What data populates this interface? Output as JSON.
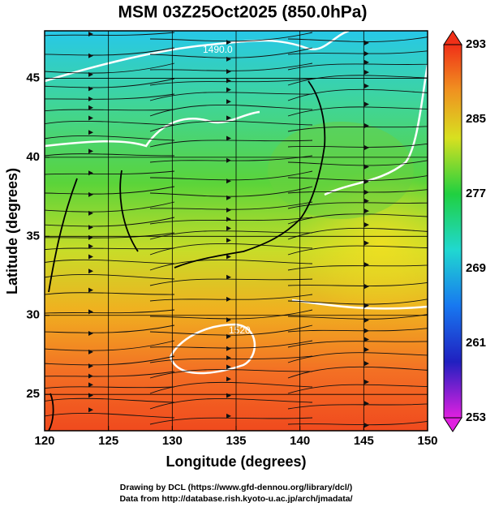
{
  "map": {
    "title": "MSM 03Z25Oct2025 (850.0hPa)",
    "xlabel": "Longitude (degrees)",
    "ylabel": "Latitude  (degrees)",
    "xlim": [
      120,
      150
    ],
    "ylim": [
      22.7,
      48
    ],
    "xticks": [
      120,
      125,
      130,
      135,
      140,
      145,
      150
    ],
    "yticks": [
      25,
      30,
      35,
      40,
      45
    ],
    "colorbar": {
      "lim": [
        253,
        293
      ],
      "ticks": [
        253,
        261,
        269,
        277,
        285,
        293
      ]
    },
    "contour_labels": [
      "1490.0",
      "1520"
    ],
    "footer": [
      "Drawing by DCL (https://www.gfd-dennou.org/library/dcl/)",
      "Data from http://database.rish.kyoto-u.ac.jp/arch/jmadata/"
    ]
  }
}
